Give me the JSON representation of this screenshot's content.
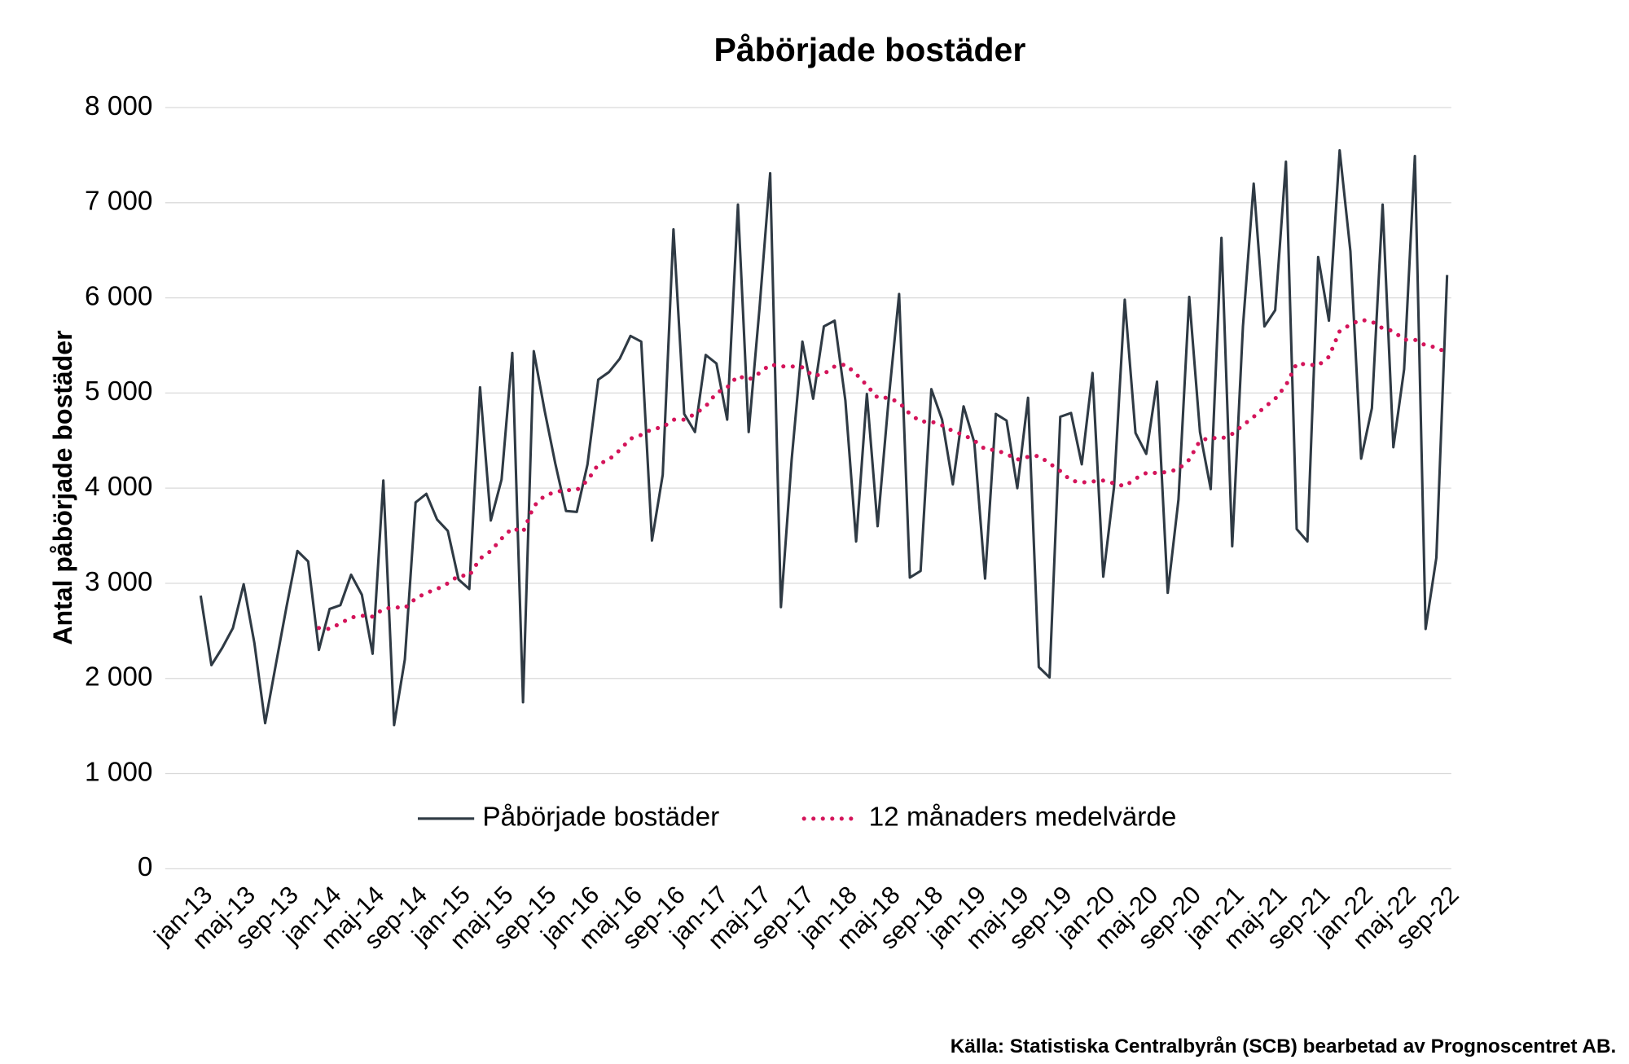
{
  "chart_data": {
    "type": "line",
    "title": "Påbörjade bostäder",
    "y_label": "Antal påbörjade bostäder",
    "source": "Källa: Statistiska Centralbyrån (SCB) bearbetad av Prognoscentret AB.",
    "categories": [
      "jan-13",
      null,
      null,
      null,
      "maj-13",
      null,
      null,
      null,
      "sep-13",
      null,
      null,
      null,
      "jan-14",
      null,
      null,
      null,
      "maj-14",
      null,
      null,
      null,
      "sep-14",
      null,
      null,
      null,
      "jan-15",
      null,
      null,
      null,
      "maj-15",
      null,
      null,
      null,
      "sep-15",
      null,
      null,
      null,
      "jan-16",
      null,
      null,
      null,
      "maj-16",
      null,
      null,
      null,
      "sep-16",
      null,
      null,
      null,
      "jan-17",
      null,
      null,
      null,
      "maj-17",
      null,
      null,
      null,
      "sep-17",
      null,
      null,
      null,
      "jan-18",
      null,
      null,
      null,
      "maj-18",
      null,
      null,
      null,
      "sep-18",
      null,
      null,
      null,
      "jan-19",
      null,
      null,
      null,
      "maj-19",
      null,
      null,
      null,
      "sep-19",
      null,
      null,
      null,
      "jan-20",
      null,
      null,
      null,
      "maj-20",
      null,
      null,
      null,
      "sep-20",
      null,
      null,
      null,
      "jan-21",
      null,
      null,
      null,
      "maj-21",
      null,
      null,
      null,
      "sep-21",
      null,
      null,
      null,
      "jan-22",
      null,
      null,
      null,
      "maj-22",
      null,
      null,
      null,
      "sep-22"
    ],
    "series": [
      {
        "name": "Påbörjade bostäder",
        "color": "#2f3a44",
        "style": "solid",
        "values": [
          2870,
          2140,
          2320,
          2530,
          2990,
          2370,
          1530,
          2150,
          2760,
          3340,
          3230,
          2300,
          2730,
          2770,
          3090,
          2880,
          2260,
          4080,
          1510,
          2200,
          3850,
          3940,
          3670,
          3550,
          3040,
          2940,
          5060,
          3660,
          4090,
          5420,
          1750,
          5440,
          4820,
          4260,
          3760,
          3750,
          4250,
          5140,
          5220,
          5360,
          5600,
          5540,
          3450,
          4140,
          6720,
          4780,
          4590,
          5400,
          5310,
          4720,
          6980,
          4590,
          5880,
          7310,
          2750,
          4300,
          5540,
          4940,
          5700,
          5760,
          4920,
          3440,
          4990,
          3600,
          4900,
          6040,
          3060,
          3130,
          5040,
          4720,
          4040,
          4860,
          4480,
          3050,
          4780,
          4710,
          4000,
          4950,
          2120,
          2010,
          4750,
          4790,
          4250,
          5210,
          3070,
          4010,
          5980,
          4580,
          4360,
          5120,
          2900,
          3880,
          6010,
          4590,
          3990,
          6630,
          3390,
          5700,
          7200,
          5700,
          5870,
          7430,
          3570,
          3440,
          6430,
          5760,
          7550,
          6490,
          4310,
          4840,
          6980,
          4430,
          5250,
          7490,
          2520,
          3270,
          6240
        ]
      },
      {
        "name": "12 månaders medelvärde",
        "color": "#d4145a",
        "style": "dotted",
        "values": [
          null,
          null,
          null,
          null,
          null,
          null,
          null,
          null,
          null,
          null,
          null,
          2530,
          2520,
          2580,
          2640,
          2660,
          2650,
          2730,
          2750,
          2740,
          2840,
          2900,
          2940,
          3000,
          3080,
          3080,
          3260,
          3340,
          3470,
          3580,
          3540,
          3810,
          3920,
          3960,
          3980,
          3980,
          4080,
          4250,
          4300,
          4400,
          4520,
          4560,
          4620,
          4640,
          4720,
          4720,
          4780,
          4860,
          5000,
          5060,
          5180,
          5140,
          5210,
          5300,
          5280,
          5280,
          5270,
          5180,
          5200,
          5280,
          5300,
          5200,
          5080,
          4950,
          4950,
          4900,
          4780,
          4700,
          4700,
          4660,
          4600,
          4560,
          4500,
          4410,
          4400,
          4360,
          4300,
          4330,
          4340,
          4260,
          4180,
          4080,
          4060,
          4070,
          4080,
          4050,
          4020,
          4100,
          4160,
          4160,
          4170,
          4200,
          4300,
          4500,
          4530,
          4520,
          4570,
          4660,
          4750,
          4850,
          4940,
          5080,
          5310,
          5300,
          5290,
          5380,
          5650,
          5720,
          5770,
          5750,
          5680,
          5650,
          5560,
          5560,
          5500,
          5480,
          5420
        ]
      }
    ],
    "ylim": [
      0,
      8000
    ],
    "yticks": [
      0,
      {
        "value": 1000,
        "label": "1 000"
      },
      {
        "value": 2000,
        "label": "2 000"
      },
      {
        "value": 3000,
        "label": "3 000"
      },
      {
        "value": 4000,
        "label": "4 000"
      },
      {
        "value": 5000,
        "label": "5 000"
      },
      {
        "value": 6000,
        "label": "6 000"
      },
      {
        "value": 7000,
        "label": "7 000"
      },
      {
        "value": 8000,
        "label": "8 000"
      }
    ],
    "grid": true,
    "legend": "bottom"
  }
}
